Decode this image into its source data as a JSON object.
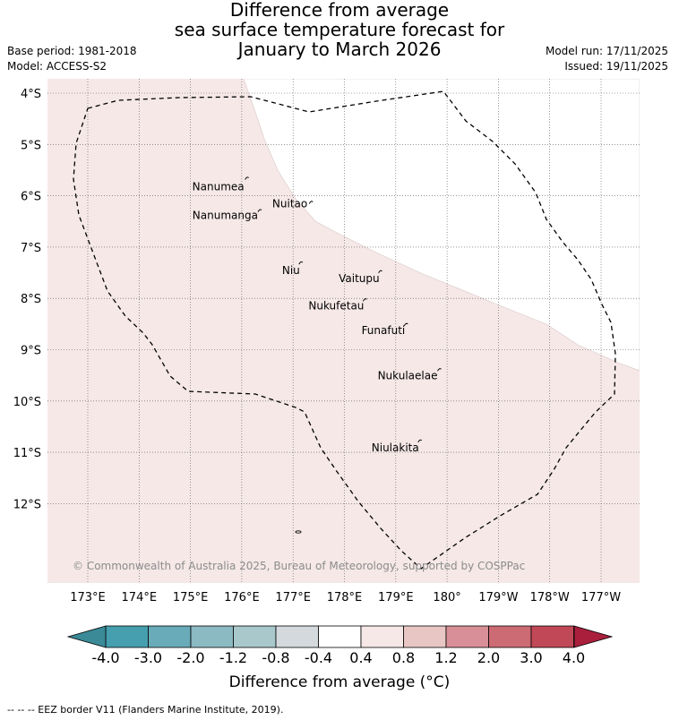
{
  "title": {
    "line1": "Difference from average",
    "line2": "sea surface temperature forecast for",
    "line3": "January to March 2026"
  },
  "meta": {
    "base_period": "Base period: 1981-2018",
    "model": "Model: ACCESS-S2",
    "model_run": "Model run: 17/11/2025",
    "issued": "Issued: 19/11/2025"
  },
  "map": {
    "lon_ticks": [
      "173°E",
      "174°E",
      "175°E",
      "176°E",
      "177°E",
      "178°E",
      "179°E",
      "180°",
      "179°W",
      "178°W",
      "177°W"
    ],
    "lat_ticks": [
      "4°S",
      "5°S",
      "6°S",
      "7°S",
      "8°S",
      "9°S",
      "10°S",
      "11°S",
      "12°S"
    ],
    "places": [
      {
        "name": "Nanumea",
        "lon": 176.1,
        "lat": -5.65
      },
      {
        "name": "Nuitao",
        "lon": 177.35,
        "lat": -6.12
      },
      {
        "name": "Nanumanga",
        "lon": 176.35,
        "lat": -6.28
      },
      {
        "name": "Niu",
        "lon": 177.15,
        "lat": -7.3
      },
      {
        "name": "Vaitupu",
        "lon": 178.7,
        "lat": -7.47
      },
      {
        "name": "Nukufetau",
        "lon": 178.4,
        "lat": -8.02
      },
      {
        "name": "Funafuti",
        "lon": 179.2,
        "lat": -8.5
      },
      {
        "name": "Nukulaelae",
        "lon": 179.85,
        "lat": -9.38
      },
      {
        "name": "Niulakita",
        "lon": 179.47,
        "lat": -10.77
      }
    ],
    "anomaly_fill": "#f5e8e7",
    "neutral_fill": "#ffffff",
    "copyright": "© Commonwealth of Australia 2025, Bureau of Meteorology, supported by COSPPac"
  },
  "colorbar": {
    "labels": [
      "-4.0",
      "-3.0",
      "-2.0",
      "-1.2",
      "-0.8",
      "-0.4",
      "0.4",
      "0.8",
      "1.2",
      "2.0",
      "3.0",
      "4.0"
    ],
    "colors": [
      "#469faf",
      "#69abb9",
      "#8bbac3",
      "#a9c8cb",
      "#d3d9dc",
      "#ffffff",
      "#f5e8e7",
      "#e8c6c4",
      "#d98f97",
      "#cd6b75",
      "#c14856"
    ],
    "under_color": "#3a8a97",
    "over_color": "#a91f3c",
    "label": "Difference from average (°C)"
  },
  "footer": "-- -- -- EEZ border V11 (Flanders Marine Institute, 2019)."
}
